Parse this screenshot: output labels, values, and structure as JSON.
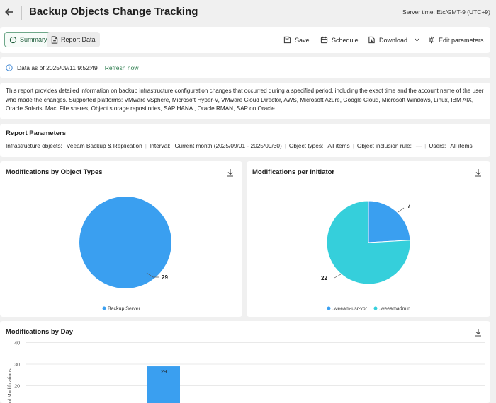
{
  "header": {
    "title": "Backup Objects Change Tracking",
    "server_time": "Server time: Etc/GMT-9 (UTC+9)"
  },
  "toolbar": {
    "tabs": [
      {
        "label": "Summary",
        "active": true
      },
      {
        "label": "Report Data",
        "active": false
      }
    ],
    "save_label": "Save",
    "schedule_label": "Schedule",
    "download_label": "Download",
    "edit_label": "Edit parameters"
  },
  "info": {
    "data_as_of": "Data as of 2025/09/11 9:52:49",
    "refresh_label": "Refresh now"
  },
  "description": "This report provides detailed information on backup infrastructure configuration changes that occurred during a specified period, including the exact time and the account name of the user who made the changes. Supported platforms: VMware vSphere, Microsoft Hyper-V, VMware Cloud Director, AWS, Microsoft Azure, Google Cloud, Microsoft Windows, Linux, IBM AIX, Oracle Solaris, Mac, File shares, Object storage repositories, SAP HANA , Oracle RMAN, SAP on Oracle.",
  "parameters": {
    "title": "Report Parameters",
    "items": [
      {
        "label": "Infrastructure objects:",
        "value": "Veeam Backup & Replication"
      },
      {
        "label": "Interval:",
        "value": "Current month (2025/09/01 - 2025/09/30)"
      },
      {
        "label": "Object types:",
        "value": "All items"
      },
      {
        "label": "Object inclusion rule:",
        "value": "—"
      },
      {
        "label": "Users:",
        "value": "All items"
      }
    ]
  },
  "colors": {
    "blue": "#3a9ff0",
    "teal": "#35cfdb",
    "accent_green": "#2e7d4f"
  },
  "chart_data": [
    {
      "type": "pie",
      "title": "Modifications by Object Types",
      "slices": [
        {
          "label": "Backup Server",
          "value": 29,
          "color": "#3a9ff0"
        }
      ],
      "legend": "bottom"
    },
    {
      "type": "pie",
      "title": "Modifications per Initiator",
      "slices": [
        {
          "label": ".\\veeam-usr-vbr",
          "value": 7,
          "color": "#3a9ff0"
        },
        {
          "label": ".\\veeamadmin",
          "value": 22,
          "color": "#35cfdb"
        }
      ],
      "legend": "bottom"
    },
    {
      "type": "bar",
      "title": "Modifications by Day",
      "ylabel": "of Modifications",
      "yticks": [
        20,
        30,
        40
      ],
      "values": [
        29
      ],
      "grid": true
    }
  ]
}
